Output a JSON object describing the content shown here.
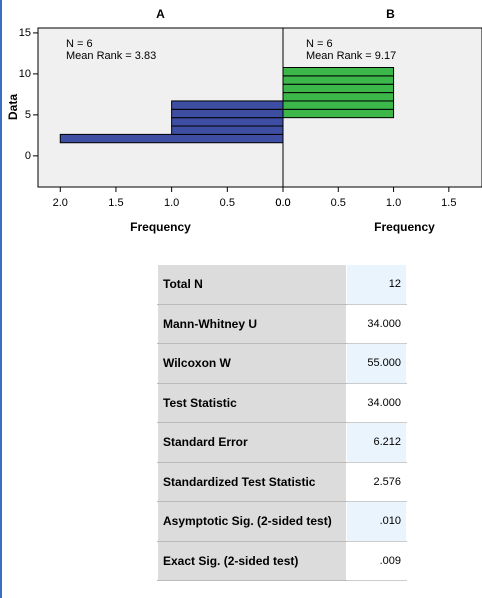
{
  "chart_data": [
    {
      "type": "histogram",
      "orientation": "horizontal",
      "title": "A",
      "xlabel": "Frequency",
      "ylabel": "Data",
      "annotations": [
        "N = 6",
        "Mean Rank = 3.83"
      ],
      "bins": [
        1.6,
        2.62,
        3.64,
        4.66,
        5.68,
        6.7,
        7.72,
        8.74,
        9.76,
        10.78
      ],
      "counts": [
        2,
        1,
        1,
        1,
        1,
        0,
        0,
        0,
        0
      ],
      "color": "#3e4fa3",
      "xlim": [
        2.2,
        0
      ],
      "xticks": [
        {
          "value": 2,
          "label": "2.0"
        },
        1.5,
        {
          "value": 1,
          "label": "1.0"
        },
        0.5,
        {
          "value": 0,
          "label": "0.0"
        }
      ],
      "ylim": [
        -3.8,
        15.6
      ],
      "yticks": [
        0,
        5,
        10,
        15
      ]
    },
    {
      "type": "histogram",
      "orientation": "horizontal",
      "title": "B",
      "xlabel": "Frequency",
      "annotations": [
        "N = 6",
        "Mean Rank = 9.17"
      ],
      "bins": [
        1.6,
        2.62,
        3.64,
        4.66,
        5.68,
        6.7,
        7.72,
        8.74,
        9.76,
        10.78
      ],
      "counts": [
        0,
        0,
        0,
        1,
        1,
        1,
        1,
        1,
        1
      ],
      "color": "#3cb84a",
      "xlim": [
        0,
        1.8
      ],
      "xticks": [
        {
          "value": 0,
          "label": "0.0"
        },
        0.5,
        {
          "value": 1,
          "label": "1.0"
        },
        1.5
      ],
      "ylim": [
        -3.8,
        15.6
      ]
    }
  ],
  "table": {
    "rows": [
      [
        "Total N",
        "12"
      ],
      [
        "Mann-Whitney U",
        "34.000"
      ],
      [
        "Wilcoxon W",
        "55.000"
      ],
      [
        "Test Statistic",
        "34.000"
      ],
      [
        "Standard Error",
        "6.212"
      ],
      [
        "Standardized Test Statistic",
        "2.576"
      ],
      [
        "Asymptotic Sig. (2-sided test)",
        ".010"
      ],
      [
        "Exact Sig. (2-sided test)",
        ".009"
      ]
    ]
  }
}
